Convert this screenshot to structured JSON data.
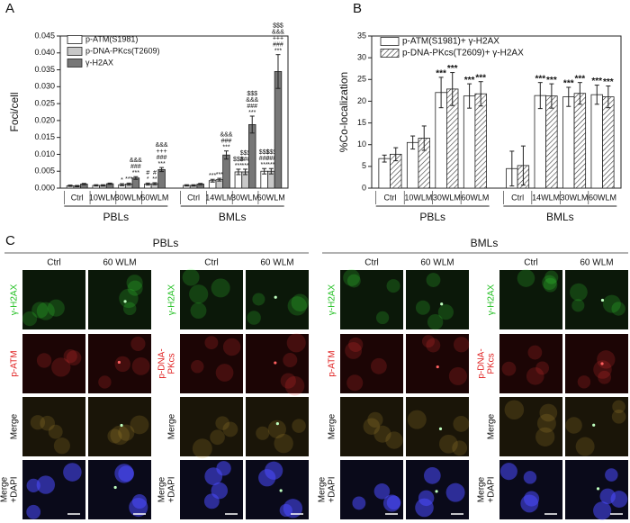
{
  "chart_data": [
    {
      "type": "bar",
      "panel": "A",
      "y_label": "Foci/cell",
      "categories": [
        "Ctrl",
        "10WLM",
        "30WLM",
        "60WLM",
        "Ctrl",
        "14WLM",
        "30WLM",
        "60WLM"
      ],
      "groups": [
        "PBLs",
        "BMLs"
      ],
      "series": [
        {
          "name": "p-ATM(S1981)",
          "color": "#ffffff",
          "values": [
            0.0007,
            0.0008,
            0.001,
            0.0012,
            0.0008,
            0.0022,
            0.0048,
            0.005
          ],
          "errors": [
            0.0002,
            0.0002,
            0.0003,
            0.0003,
            0.0002,
            0.0004,
            0.0008,
            0.0008
          ],
          "annotations": [
            null,
            null,
            [
              "*"
            ],
            [
              "#",
              "*"
            ],
            null,
            [
              "***"
            ],
            [
              "$$$",
              "***"
            ],
            [
              "$$$",
              "###",
              "***"
            ]
          ]
        },
        {
          "name": "p-DNA-PKcs(T2609)",
          "color": "#c8c8c8",
          "values": [
            0.0006,
            0.0008,
            0.0012,
            0.0013,
            0.0008,
            0.0025,
            0.0048,
            0.005
          ],
          "errors": [
            0.0002,
            0.0002,
            0.0003,
            0.0003,
            0.0002,
            0.0004,
            0.0008,
            0.0008
          ],
          "annotations": [
            null,
            null,
            [
              "***"
            ],
            [
              "#",
              "**"
            ],
            null,
            [
              "***"
            ],
            [
              "$$$",
              "###",
              "***"
            ],
            [
              "$$$",
              "###",
              "***"
            ]
          ]
        },
        {
          "name": "γ-H2AX",
          "color": "#777777",
          "values": [
            0.0012,
            0.0013,
            0.003,
            0.0055,
            0.0012,
            0.0098,
            0.0188,
            0.0345
          ],
          "errors": [
            0.0002,
            0.0002,
            0.0004,
            0.0006,
            0.0002,
            0.0012,
            0.0025,
            0.005
          ],
          "annotations": [
            null,
            null,
            [
              "&&&",
              "###",
              "***"
            ],
            [
              "&&&",
              "+++",
              "###",
              "***"
            ],
            null,
            [
              "&&&",
              "###",
              "***"
            ],
            [
              "$$$",
              "&&&",
              "###",
              "***"
            ],
            [
              "$$$",
              "&&&",
              "+++",
              "###",
              "***"
            ]
          ]
        }
      ],
      "ylim": [
        0,
        0.045
      ],
      "yticks": [
        {
          "value": 0,
          "label": "0.000"
        },
        {
          "value": 0.005,
          "label": "0.005"
        },
        {
          "value": 0.01,
          "label": "0.010"
        },
        {
          "value": 0.015,
          "label": "0.015"
        },
        {
          "value": 0.02,
          "label": "0.020"
        },
        {
          "value": 0.025,
          "label": "0.025"
        },
        {
          "value": 0.03,
          "label": "0.030"
        },
        {
          "value": 0.035,
          "label": "0.035"
        },
        {
          "value": 0.04,
          "label": "0.040"
        },
        {
          "value": 0.045,
          "label": "0.045"
        }
      ],
      "legend": "upper left"
    },
    {
      "type": "bar",
      "panel": "B",
      "y_label": "%Co-localization",
      "categories": [
        "Ctrl",
        "10WLM",
        "30WLM",
        "60WLM",
        "Ctrl",
        "14WLM",
        "30WLM",
        "60WLM"
      ],
      "groups": [
        "PBLs",
        "BMLs"
      ],
      "series": [
        {
          "name": "p-ATM(S1981)+ γ-H2AX",
          "color": "#ffffff",
          "hatch": false,
          "values": [
            6.8,
            10.5,
            22,
            21.2,
            4.5,
            21.3,
            21,
            21.5
          ],
          "errors": [
            0.8,
            1.5,
            3.5,
            2.8,
            4,
            3,
            2.2,
            2.2
          ],
          "annotations": [
            null,
            null,
            [
              "***"
            ],
            [
              "***"
            ],
            null,
            [
              "***"
            ],
            [
              "***"
            ],
            [
              "***"
            ]
          ]
        },
        {
          "name": "p-DNA-PKcs(T2609)+ γ-H2AX",
          "color": "#ffffff",
          "hatch": true,
          "values": [
            7.8,
            11.5,
            22.8,
            21.7,
            5.2,
            21.2,
            21.8,
            21
          ],
          "errors": [
            1.5,
            2.8,
            3.8,
            2.8,
            4.5,
            2.8,
            2.5,
            2.5
          ],
          "annotations": [
            null,
            null,
            [
              "***"
            ],
            [
              "***"
            ],
            null,
            [
              "***"
            ],
            [
              "***"
            ],
            [
              "***"
            ]
          ]
        }
      ],
      "ylim": [
        0,
        35
      ],
      "yticks": [
        0,
        5,
        10,
        15,
        20,
        25,
        30,
        35
      ],
      "legend": "upper center"
    }
  ],
  "panel_c": {
    "panel": "C",
    "groups": [
      {
        "title": "PBLs",
        "blocks": [
          {
            "columns": [
              "Ctrl",
              "60 WLM"
            ],
            "rows": [
              {
                "label": [
                  "γ-H2AX"
                ],
                "color": "#1fbf1f"
              },
              {
                "label": [
                  "p-ATM"
                ],
                "color": "#e02020"
              },
              {
                "label": [
                  "Merge"
                ],
                "color": "#111111"
              },
              {
                "label": [
                  "Merge",
                  "+DAPI"
                ],
                "color": "#111111"
              }
            ]
          },
          {
            "columns": [
              "Ctrl",
              "60 WLM"
            ],
            "rows": [
              {
                "label": [
                  "γ-H2AX"
                ],
                "color": "#1fbf1f"
              },
              {
                "label": [
                  "p-DNA-",
                  "PKcs"
                ],
                "color": "#e02020"
              },
              {
                "label": [
                  "Merge"
                ],
                "color": "#111111"
              },
              {
                "label": [
                  "Merge",
                  "+DAPI"
                ],
                "color": "#111111"
              }
            ]
          }
        ]
      },
      {
        "title": "BMLs",
        "blocks": [
          {
            "columns": [
              "Ctrl",
              "60 WLM"
            ],
            "rows": [
              {
                "label": [
                  "γ-H2AX"
                ],
                "color": "#1fbf1f"
              },
              {
                "label": [
                  "p-ATM"
                ],
                "color": "#e02020"
              },
              {
                "label": [
                  "Merge"
                ],
                "color": "#111111"
              },
              {
                "label": [
                  "Merge",
                  "+DAPI"
                ],
                "color": "#111111"
              }
            ]
          },
          {
            "columns": [
              "Ctrl",
              "60 WLM"
            ],
            "rows": [
              {
                "label": [
                  "γ-H2AX"
                ],
                "color": "#1fbf1f"
              },
              {
                "label": [
                  "p-DNA-",
                  "PKcs"
                ],
                "color": "#e02020"
              },
              {
                "label": [
                  "Merge"
                ],
                "color": "#111111"
              },
              {
                "label": [
                  "Merge",
                  "+DAPI"
                ],
                "color": "#111111"
              }
            ]
          }
        ]
      }
    ]
  }
}
